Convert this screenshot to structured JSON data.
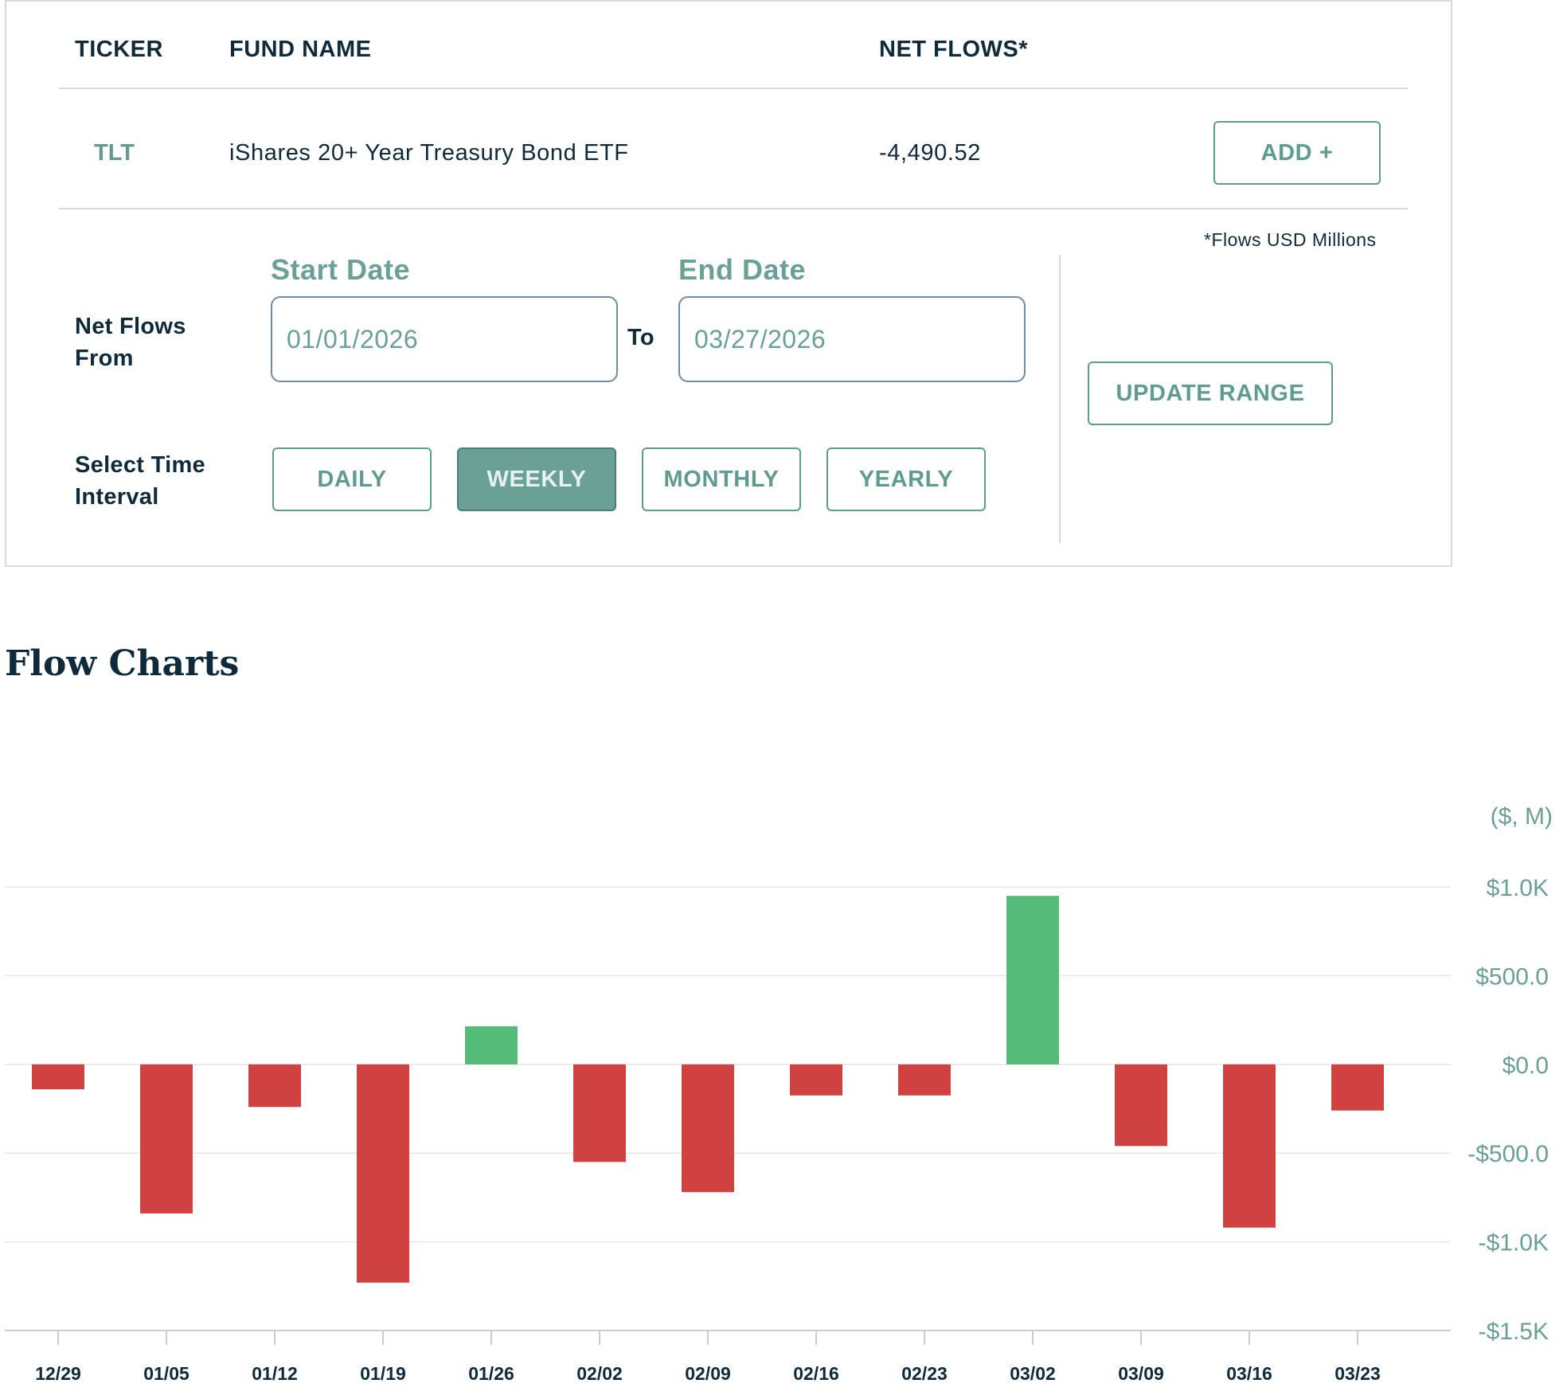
{
  "table": {
    "headers": {
      "ticker": "TICKER",
      "fund_name": "FUND NAME",
      "net_flows": "NET FLOWS*"
    },
    "row": {
      "ticker": "TLT",
      "fund_name": "iShares 20+ Year Treasury Bond ETF",
      "net_flows": "-4,490.52",
      "add_label": "ADD +"
    },
    "note": "*Flows USD Millions"
  },
  "range": {
    "start_label": "Start Date",
    "end_label": "End Date",
    "start_value": "01/01/2026",
    "end_value": "03/27/2026",
    "to_label": "To",
    "from_label_line1": "Net Flows",
    "from_label_line2": "From",
    "interval_label_line1": "Select Time",
    "interval_label_line2": "Interval",
    "intervals": [
      "DAILY",
      "WEEKLY",
      "MONTHLY",
      "YEARLY"
    ],
    "selected_interval": "WEEKLY",
    "update_label": "UPDATE RANGE"
  },
  "section_title": "Flow Charts",
  "chart_data": {
    "type": "bar",
    "title": "Flow Charts",
    "unit_label": "($, M)",
    "categories": [
      "12/29",
      "01/05",
      "01/12",
      "01/19",
      "01/26",
      "02/02",
      "02/09",
      "02/16",
      "02/23",
      "03/02",
      "03/09",
      "03/16",
      "03/23"
    ],
    "values": [
      -140,
      -840,
      -240,
      -1230,
      215,
      -550,
      -720,
      -175,
      -175,
      950,
      -460,
      -920,
      -260
    ],
    "ylim": [
      -1500,
      1000
    ],
    "yticks": [
      1000,
      500,
      0,
      -500,
      -1000,
      -1500
    ],
    "ytick_labels": [
      "$1.0K",
      "$500.0",
      "$0.0",
      "-$500.0",
      "-$1.0K",
      "-$1.5K"
    ],
    "colors": {
      "positive": "#55bb78",
      "negative": "#d04242"
    }
  }
}
